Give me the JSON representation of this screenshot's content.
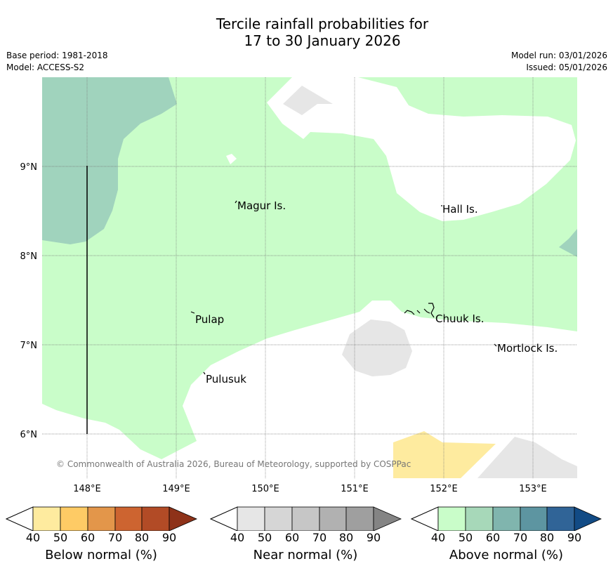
{
  "title": {
    "line1": "Tercile rainfall probabilities for",
    "line2": "17 to 30 January 2026"
  },
  "meta": {
    "base_period": "Base period: 1981-2018",
    "model": "Model: ACCESS-S2",
    "model_run": "Model run: 03/01/2026",
    "issued": "Issued: 05/01/2026"
  },
  "map": {
    "lon_labels": [
      "148°E",
      "149°E",
      "150°E",
      "151°E",
      "152°E",
      "153°E"
    ],
    "lat_labels": [
      "9°N",
      "8°N",
      "7°N",
      "6°N"
    ],
    "places": [
      {
        "name": "Magur Is."
      },
      {
        "name": "Hall Is."
      },
      {
        "name": "Pulap"
      },
      {
        "name": "Chuuk Is."
      },
      {
        "name": "Mortlock Is."
      },
      {
        "name": "Pulusuk"
      }
    ],
    "copyright": "© Commonwealth of Australia 2026, Bureau of Meteorology, supported by COSPPac",
    "colors": {
      "above_50": "#c9fdc9",
      "above_60": "#a0d3bd",
      "near_50": "#e6e6e6",
      "below_50": "#feeb9f"
    }
  },
  "legends": [
    {
      "title": "Below normal (%)",
      "ticks": [
        "40",
        "50",
        "60",
        "70",
        "80",
        "90"
      ],
      "colors": [
        "#feeb9f",
        "#fecb65",
        "#e3964a",
        "#cd6430",
        "#b24b26",
        "#8e3219"
      ]
    },
    {
      "title": "Near normal (%)",
      "ticks": [
        "40",
        "50",
        "60",
        "70",
        "80",
        "90"
      ],
      "colors": [
        "#e6e6e6",
        "#d6d6d6",
        "#c6c6c6",
        "#b1b1b1",
        "#9f9f9f",
        "#848484"
      ]
    },
    {
      "title": "Above normal (%)",
      "ticks": [
        "40",
        "50",
        "60",
        "70",
        "80",
        "90"
      ],
      "colors": [
        "#c9fdc9",
        "#a7d8b9",
        "#80b5ae",
        "#5d95a1",
        "#306497",
        "#124b85"
      ]
    }
  ]
}
